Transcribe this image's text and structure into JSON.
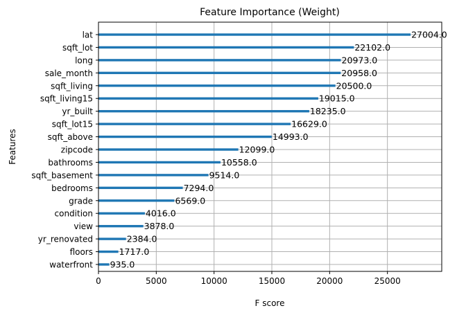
{
  "chart_data": {
    "type": "bar",
    "orientation": "horizontal",
    "title": "Feature Importance (Weight)",
    "xlabel": "F score",
    "ylabel": "Features",
    "xlim": [
      0,
      29700
    ],
    "xticks": [
      0,
      5000,
      10000,
      15000,
      20000,
      25000
    ],
    "xtick_labels": [
      "0",
      "5000",
      "10000",
      "15000",
      "20000",
      "25000"
    ],
    "grid": true,
    "bar_color": "#1f77b4",
    "categories": [
      "lat",
      "sqft_lot",
      "long",
      "sale_month",
      "sqft_living",
      "sqft_living15",
      "yr_built",
      "sqft_lot15",
      "sqft_above",
      "zipcode",
      "bathrooms",
      "sqft_basement",
      "bedrooms",
      "grade",
      "condition",
      "view",
      "yr_renovated",
      "floors",
      "waterfront"
    ],
    "values": [
      27004,
      22102,
      20973,
      20958,
      20500,
      19015,
      18235,
      16629,
      14993,
      12099,
      10558,
      9514,
      7294,
      6569,
      4016,
      3878,
      2384,
      1717,
      935
    ],
    "value_labels": [
      "27004.0",
      "22102.0",
      "20973.0",
      "20958.0",
      "20500.0",
      "19015.0",
      "18235.0",
      "16629.0",
      "14993.0",
      "12099.0",
      "10558.0",
      "9514.0",
      "7294.0",
      "6569.0",
      "4016.0",
      "3878.0",
      "2384.0",
      "1717.0",
      "935.0"
    ]
  }
}
